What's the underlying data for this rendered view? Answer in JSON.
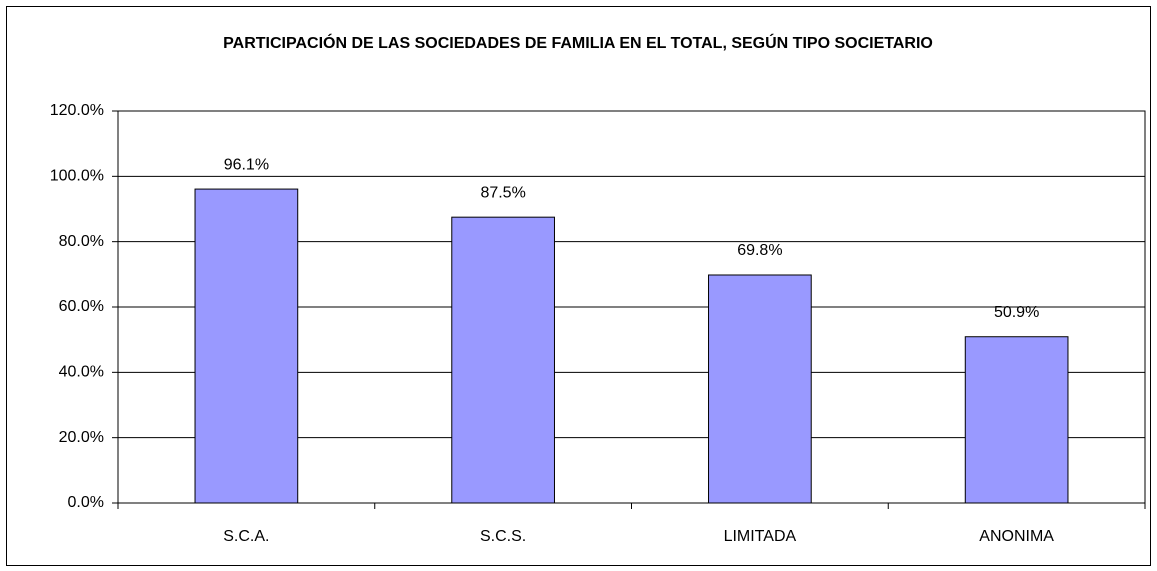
{
  "chart_data": {
    "type": "bar",
    "title": "PARTICIPACIÓN DE LAS SOCIEDADES DE FAMILIA EN EL TOTAL, SEGÚN TIPO SOCIETARIO",
    "categories": [
      "S.C.A.",
      "S.C.S.",
      "LIMITADA",
      "ANONIMA"
    ],
    "values": [
      96.1,
      87.5,
      69.8,
      50.9
    ],
    "value_labels": [
      "96.1%",
      "87.5%",
      "69.8%",
      "50.9%"
    ],
    "color": "#9999ff",
    "ylim": [
      0,
      120
    ],
    "yticks": [
      {
        "value": 0,
        "label": "0.0%"
      },
      {
        "value": 20,
        "label": "20.0%"
      },
      {
        "value": 40,
        "label": "40.0%"
      },
      {
        "value": 60,
        "label": "60.0%"
      },
      {
        "value": 80,
        "label": "80.0%"
      },
      {
        "value": 100,
        "label": "100.0%"
      },
      {
        "value": 120,
        "label": "120.0%"
      }
    ],
    "grid": true
  }
}
